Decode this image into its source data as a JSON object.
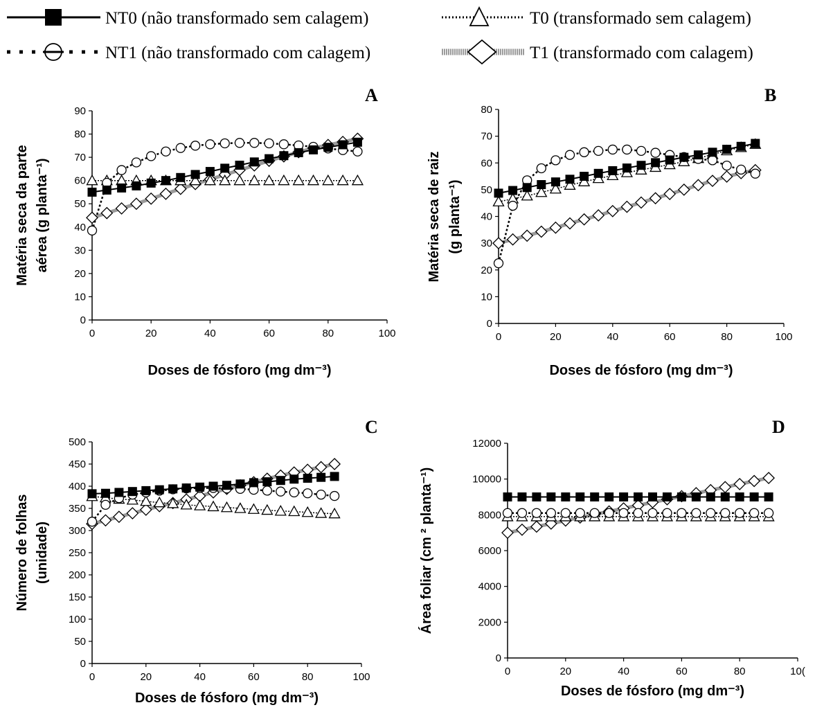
{
  "legend": [
    {
      "key": "NT0",
      "label": "NT0 (não transformado sem calagem)"
    },
    {
      "key": "T0",
      "label": "T0 (transformado sem calagem)"
    },
    {
      "key": "NT1",
      "label": "NT1 (não transformado com calagem)"
    },
    {
      "key": "T1",
      "label": "T1 (transformado com calagem)"
    }
  ],
  "series_style": {
    "NT0": {
      "marker": "filled-square",
      "line": "solid",
      "line_color": "#000000",
      "marker_color": "#000000"
    },
    "NT1": {
      "marker": "open-circle",
      "line": "dotted-thick",
      "line_color": "#000000",
      "marker_color": "#000000"
    },
    "T0": {
      "marker": "open-triangle",
      "line": "dotted",
      "line_color": "#000000",
      "marker_color": "#000000"
    },
    "T1": {
      "marker": "open-diamond",
      "line": "gray-thick",
      "line_color": "#9a9a9a",
      "marker_color": "#000000"
    }
  },
  "chart_data": [
    {
      "panel": "A",
      "type": "line",
      "title": "",
      "xlabel": "Doses de fósforo (mg dm⁻³)",
      "ylabel_lines": [
        "Matéria seca da parte",
        "aérea  (g planta⁻¹)"
      ],
      "xlim": [
        0,
        100
      ],
      "ylim": [
        0,
        90
      ],
      "xticks": [
        "0",
        "20",
        "40",
        "60",
        "80",
        "100"
      ],
      "yticks": [
        "0",
        "10",
        "20",
        "30",
        "40",
        "50",
        "60",
        "70",
        "80",
        "90"
      ],
      "grid": false,
      "x": [
        0,
        5,
        10,
        15,
        20,
        25,
        30,
        35,
        40,
        45,
        50,
        55,
        60,
        65,
        70,
        75,
        80,
        85,
        90
      ],
      "series": [
        {
          "key": "NT0",
          "values": [
            55,
            55.9,
            56.8,
            57.7,
            58.9,
            60,
            61.3,
            62.6,
            63.9,
            65.3,
            66.6,
            68,
            69.4,
            70.7,
            72,
            73.2,
            74.3,
            75.4,
            76.5
          ]
        },
        {
          "key": "NT1",
          "values": [
            38.5,
            59,
            64.5,
            67.8,
            70.5,
            72.5,
            74,
            75,
            75.6,
            76,
            76.2,
            76.2,
            76,
            75.6,
            75.1,
            74.5,
            73.8,
            73.1,
            72.5
          ]
        },
        {
          "key": "T0",
          "values": [
            60,
            60,
            60,
            60,
            60,
            60,
            60,
            60,
            60,
            60,
            60,
            60,
            60,
            60,
            60,
            60,
            60,
            60,
            60
          ]
        },
        {
          "key": "T1",
          "values": [
            44,
            46,
            48,
            50,
            52.2,
            54.3,
            56.4,
            58.5,
            60.5,
            62.5,
            64.5,
            66.5,
            68.5,
            70.4,
            72.2,
            74,
            75.3,
            76.6,
            78
          ]
        }
      ]
    },
    {
      "panel": "B",
      "type": "line",
      "title": "",
      "xlabel": "Doses de fósforo (mg dm⁻³)",
      "ylabel_lines": [
        "Matéria seca de raiz",
        "(g planta⁻¹)"
      ],
      "xlim": [
        0,
        100
      ],
      "ylim": [
        0,
        80
      ],
      "xticks": [
        "0",
        "20",
        "40",
        "60",
        "80",
        "100"
      ],
      "yticks": [
        "0",
        "10",
        "20",
        "30",
        "40",
        "50",
        "60",
        "70",
        "80"
      ],
      "grid": false,
      "x": [
        0,
        5,
        10,
        15,
        20,
        25,
        30,
        35,
        40,
        45,
        50,
        55,
        60,
        65,
        70,
        75,
        80,
        85,
        90
      ],
      "series": [
        {
          "key": "NT0",
          "values": [
            48.7,
            49.7,
            50.8,
            51.9,
            52.9,
            53.9,
            55,
            56.1,
            57.1,
            58.1,
            59.1,
            60.1,
            61.1,
            62.1,
            63,
            64,
            65.1,
            66.2,
            67.3
          ]
        },
        {
          "key": "NT1",
          "values": [
            22.5,
            44,
            53.5,
            58,
            61,
            63,
            64,
            64.5,
            65,
            65,
            64.5,
            63.8,
            63,
            62.2,
            61.5,
            61,
            59,
            57.5,
            56
          ]
        },
        {
          "key": "T0",
          "values": [
            45.5,
            46.6,
            47.7,
            49,
            50.3,
            51.7,
            53,
            54.2,
            55.3,
            56.4,
            57.4,
            58.4,
            59.4,
            60.5,
            61.7,
            63.2,
            64.6,
            65.8,
            67
          ]
        },
        {
          "key": "T1",
          "values": [
            30,
            31.4,
            32.8,
            34.3,
            35.8,
            37.4,
            38.9,
            40.4,
            42,
            43.6,
            45.2,
            46.8,
            48.4,
            50,
            51.7,
            53.3,
            54.9,
            56.2,
            57.3
          ]
        }
      ]
    },
    {
      "panel": "C",
      "type": "line",
      "title": "",
      "xlabel": "Doses de fósforo (mg dm⁻³)",
      "ylabel_lines": [
        "Número de folhas",
        "(unidade)"
      ],
      "xlim": [
        0,
        100
      ],
      "ylim": [
        0,
        500
      ],
      "xticks": [
        "0",
        "20",
        "40",
        "60",
        "80",
        "100"
      ],
      "yticks": [
        "0",
        "50",
        "100",
        "150",
        "200",
        "250",
        "300",
        "350",
        "400",
        "450",
        "500"
      ],
      "grid": false,
      "x": [
        0,
        5,
        10,
        15,
        20,
        25,
        30,
        35,
        40,
        45,
        50,
        55,
        60,
        65,
        70,
        75,
        80,
        85,
        90
      ],
      "series": [
        {
          "key": "NT0",
          "values": [
            383,
            384,
            386,
            388,
            390,
            392,
            394,
            396,
            398,
            400,
            402,
            405,
            408,
            410,
            413,
            416,
            418,
            420,
            422
          ]
        },
        {
          "key": "NT1",
          "values": [
            320,
            358,
            373,
            381,
            386,
            390,
            393,
            395,
            396,
            396,
            395,
            394,
            392,
            390,
            388,
            386,
            384,
            381,
            378
          ]
        },
        {
          "key": "T0",
          "values": [
            377,
            374,
            371,
            369,
            366,
            363,
            361,
            358,
            356,
            354,
            352,
            350,
            348,
            346,
            344,
            343,
            341,
            339,
            338
          ]
        },
        {
          "key": "T1",
          "values": [
            315,
            323,
            331,
            339,
            347,
            355,
            362,
            370,
            378,
            386,
            394,
            402,
            409,
            417,
            424,
            431,
            437,
            443,
            450
          ]
        }
      ]
    },
    {
      "panel": "D",
      "type": "line",
      "title": "",
      "xlabel": "Doses de fósforo (mg dm⁻³)",
      "ylabel_lines": [
        "Área foliar (cm ² planta⁻¹)"
      ],
      "xlim": [
        0,
        100
      ],
      "ylim": [
        0,
        12000
      ],
      "xticks": [
        "0",
        "20",
        "40",
        "60",
        "80",
        "10("
      ],
      "yticks": [
        "0",
        "2000",
        "4000",
        "6000",
        "8000",
        "10000",
        "12000"
      ],
      "grid": false,
      "x": [
        0,
        5,
        10,
        15,
        20,
        25,
        30,
        35,
        40,
        45,
        50,
        55,
        60,
        65,
        70,
        75,
        80,
        85,
        90
      ],
      "series": [
        {
          "key": "NT0",
          "values": [
            9000,
            9000,
            9000,
            9000,
            9000,
            9000,
            9000,
            9000,
            9000,
            9000,
            9000,
            9000,
            9000,
            9000,
            9000,
            9000,
            9000,
            9000,
            9000
          ]
        },
        {
          "key": "NT1",
          "values": [
            8100,
            8100,
            8100,
            8100,
            8100,
            8100,
            8100,
            8100,
            8100,
            8100,
            8100,
            8100,
            8100,
            8100,
            8100,
            8100,
            8100,
            8100,
            8100
          ]
        },
        {
          "key": "T0",
          "values": [
            7900,
            7900,
            7900,
            7900,
            7900,
            7900,
            7900,
            7900,
            7900,
            7900,
            7900,
            7900,
            7900,
            7900,
            7900,
            7900,
            7900,
            7900,
            7900
          ]
        },
        {
          "key": "T1",
          "values": [
            7000,
            7170,
            7340,
            7510,
            7680,
            7850,
            8020,
            8190,
            8360,
            8530,
            8700,
            8870,
            9040,
            9210,
            9380,
            9550,
            9720,
            9890,
            10060
          ]
        }
      ]
    }
  ]
}
